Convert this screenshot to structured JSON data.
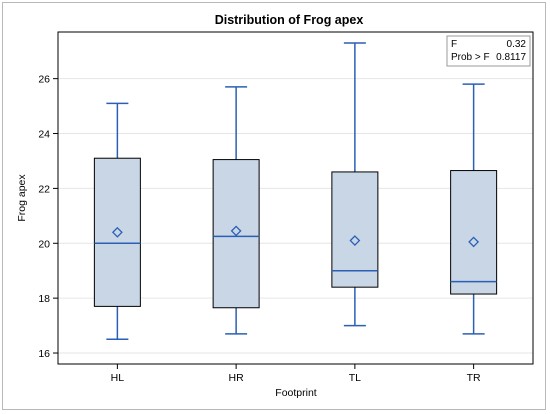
{
  "chart_data": {
    "type": "box",
    "title": "Distribution of Frog apex",
    "xlabel": "Footprint",
    "ylabel": "Frog apex",
    "ylim": [
      15.6,
      27.7
    ],
    "yticks": [
      16,
      18,
      20,
      22,
      24,
      26
    ],
    "grid": true,
    "categories": [
      "HL",
      "HR",
      "TL",
      "TR"
    ],
    "boxes": [
      {
        "category": "HL",
        "min": 16.5,
        "q1": 17.7,
        "median": 20.0,
        "q3": 23.1,
        "max": 25.1,
        "mean": 20.4
      },
      {
        "category": "HR",
        "min": 16.7,
        "q1": 17.65,
        "median": 20.25,
        "q3": 23.05,
        "max": 25.7,
        "mean": 20.45
      },
      {
        "category": "TL",
        "min": 17.0,
        "q1": 18.4,
        "median": 19.0,
        "q3": 22.6,
        "max": 27.3,
        "mean": 20.1
      },
      {
        "category": "TR",
        "min": 16.7,
        "q1": 18.15,
        "median": 18.6,
        "q3": 22.65,
        "max": 25.8,
        "mean": 20.05
      }
    ],
    "inset_table": {
      "rows": [
        {
          "label": "F",
          "value": "0.32"
        },
        {
          "label": "Prob > F",
          "value": "0.8117"
        }
      ]
    },
    "colors": {
      "box_fill": "#c8d6e6",
      "box_edge": "#000000",
      "line": "#2b5fb5",
      "grid": "#e6e6e6"
    }
  }
}
